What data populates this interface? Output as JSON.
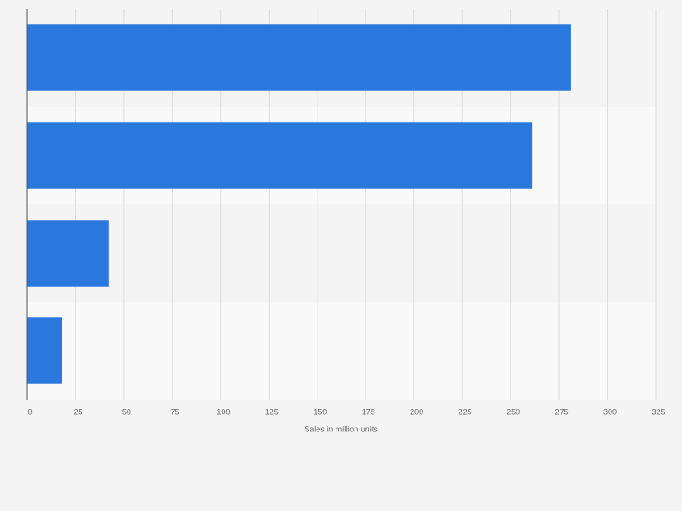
{
  "chart_data": {
    "type": "bar",
    "orientation": "horizontal",
    "categories": [
      null,
      null,
      null,
      null
    ],
    "values": [
      281,
      261,
      42,
      18
    ],
    "color": "#2a77dd",
    "xlabel": "Sales in million units",
    "xlim": [
      0,
      325
    ],
    "xticks": [
      0,
      25,
      50,
      75,
      100,
      125,
      150,
      175,
      200,
      225,
      250,
      275,
      300,
      325
    ],
    "grid": true
  }
}
